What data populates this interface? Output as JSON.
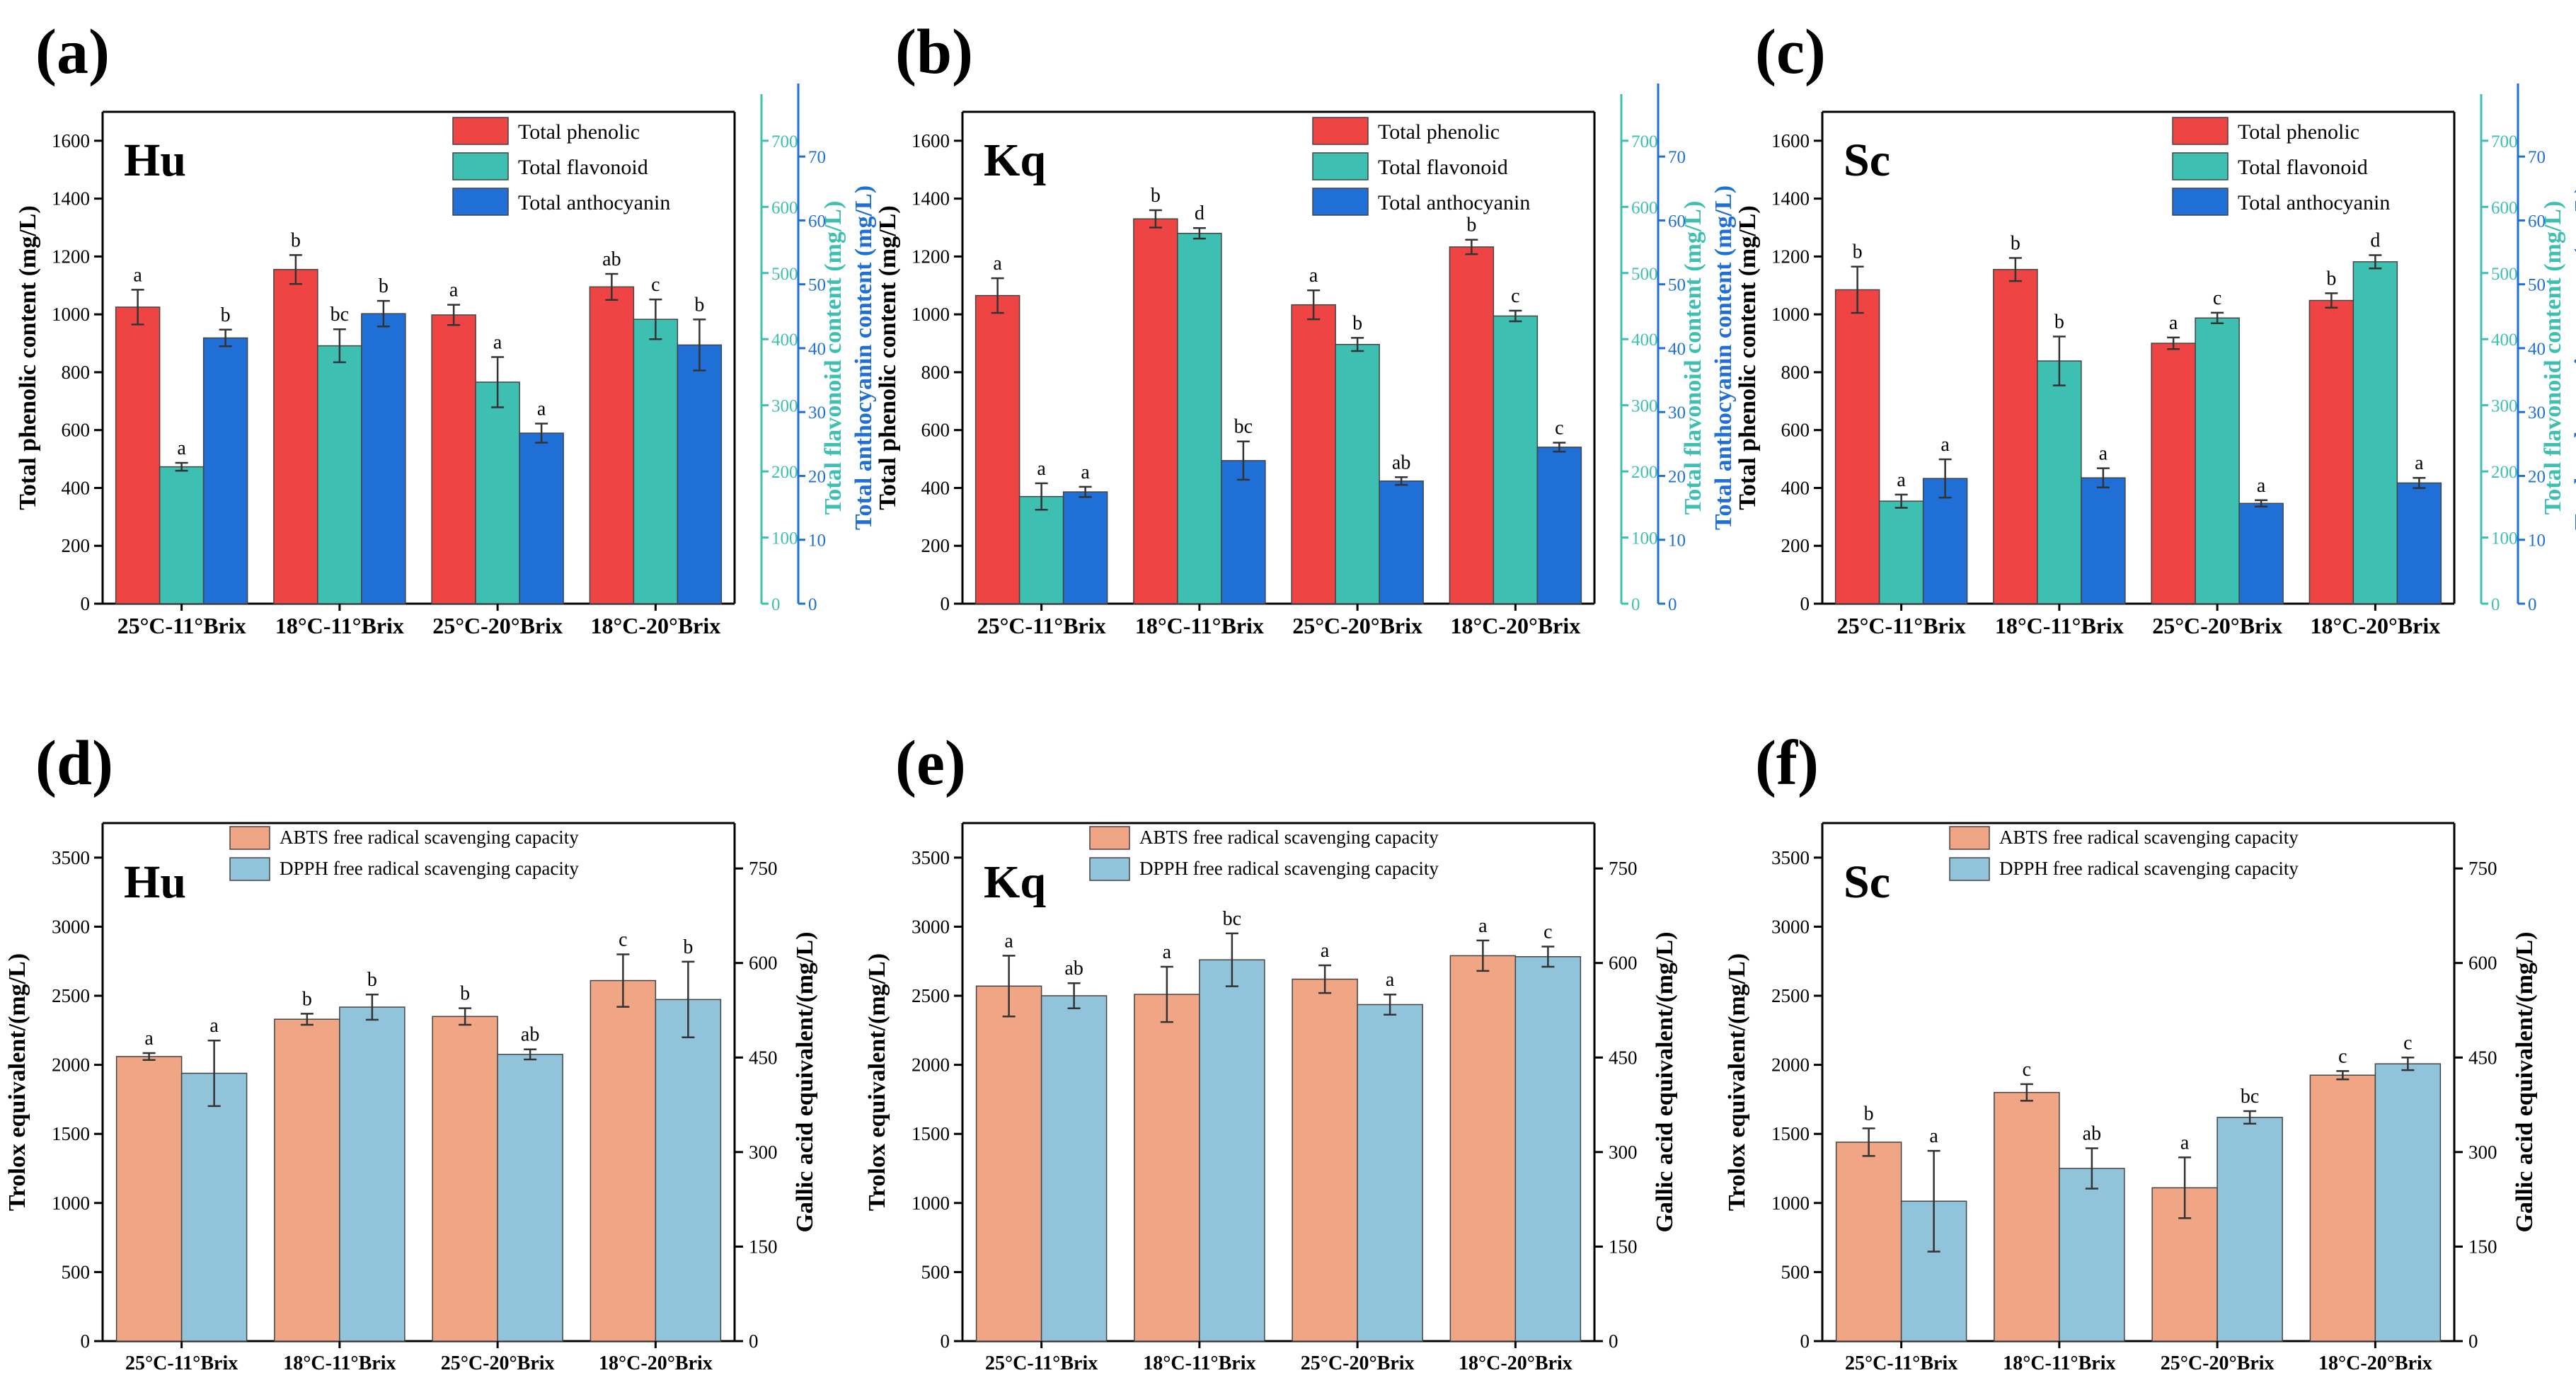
{
  "colors": {
    "phenolic": "#ef4444",
    "flavonoid": "#3dbfb2",
    "anthocyanin": "#1f6fd6",
    "abts": "#f0a585",
    "dpph": "#91c4da",
    "axis": "#000000"
  },
  "chart_data": [
    {
      "id": "a",
      "panel_label": "(a)",
      "title": "Hu",
      "type": "bar",
      "categories": [
        "25°C-11°Brix",
        "18°C-11°Brix",
        "25°C-20°Brix",
        "18°C-20°Brix"
      ],
      "ylabel": "Total phenolic  content (mg/L)",
      "ylim": [
        0,
        1700
      ],
      "yticks": [
        0,
        200,
        400,
        600,
        800,
        1000,
        1200,
        1400,
        1600
      ],
      "y2label": "Total flavonoid  content (mg/L)",
      "y2lim": [
        0,
        743.75
      ],
      "y2ticks": [
        0,
        100,
        200,
        300,
        400,
        500,
        600,
        700
      ],
      "y3label": "Total anthocyanin  content (mg/L)",
      "y3lim": [
        0,
        77
      ],
      "y3ticks": [
        0,
        10,
        20,
        30,
        40,
        50,
        60,
        70
      ],
      "series": [
        {
          "name": "Total phenolic",
          "axis": 1,
          "values": [
            1025,
            1155,
            998,
            1095
          ],
          "errors": [
            60,
            50,
            35,
            45
          ],
          "letters": [
            "a",
            "b",
            "a",
            "ab"
          ]
        },
        {
          "name": "Total flavonoid",
          "axis": 2,
          "values": [
            207,
            390,
            335,
            430
          ],
          "errors": [
            6,
            25,
            38,
            30
          ],
          "letters": [
            "a",
            "bc",
            "a",
            "c"
          ]
        },
        {
          "name": "Total anthocyanin",
          "axis": 3,
          "values": [
            41.6,
            45.4,
            26.7,
            40.5
          ],
          "errors": [
            1.3,
            2.0,
            1.5,
            4.0
          ],
          "letters": [
            "b",
            "b",
            "a",
            "b"
          ]
        }
      ]
    },
    {
      "id": "b",
      "panel_label": "(b)",
      "title": "Kq",
      "type": "bar",
      "categories": [
        "25°C-11°Brix",
        "18°C-11°Brix",
        "25°C-20°Brix",
        "18°C-20°Brix"
      ],
      "ylabel": "Total phenolic  content (mg/L)",
      "ylim": [
        0,
        1700
      ],
      "yticks": [
        0,
        200,
        400,
        600,
        800,
        1000,
        1200,
        1400,
        1600
      ],
      "y2label": "Total flavonoid  content (mg/L)",
      "y2lim": [
        0,
        743.75
      ],
      "y2ticks": [
        0,
        100,
        200,
        300,
        400,
        500,
        600,
        700
      ],
      "y3label": "Total anthocyanin  content (mg/L)",
      "y3lim": [
        0,
        77
      ],
      "y3ticks": [
        0,
        10,
        20,
        30,
        40,
        50,
        60,
        70
      ],
      "series": [
        {
          "name": "Total phenolic",
          "axis": 1,
          "values": [
            1065,
            1330,
            1033,
            1233
          ],
          "errors": [
            60,
            30,
            50,
            25
          ],
          "letters": [
            "a",
            "b",
            "a",
            "b"
          ]
        },
        {
          "name": "Total flavonoid",
          "axis": 2,
          "values": [
            162,
            560,
            392,
            435
          ],
          "errors": [
            20,
            8,
            10,
            8
          ],
          "letters": [
            "a",
            "d",
            "b",
            "c"
          ]
        },
        {
          "name": "Total anthocyanin",
          "axis": 3,
          "values": [
            17.5,
            22.4,
            19.2,
            24.5
          ],
          "errors": [
            0.8,
            3.0,
            0.6,
            0.7
          ],
          "letters": [
            "a",
            "bc",
            "ab",
            "c"
          ]
        }
      ]
    },
    {
      "id": "c",
      "panel_label": "(c)",
      "title": "Sc",
      "type": "bar",
      "categories": [
        "25°C-11°Brix",
        "18°C-11°Brix",
        "25°C-20°Brix",
        "18°C-20°Brix"
      ],
      "ylabel": "Total phenolic  content (mg/L)",
      "ylim": [
        0,
        1700
      ],
      "yticks": [
        0,
        200,
        400,
        600,
        800,
        1000,
        1200,
        1400,
        1600
      ],
      "y2label": "Total flavonoid  content (mg/L)",
      "y2lim": [
        0,
        743.75
      ],
      "y2ticks": [
        0,
        100,
        200,
        300,
        400,
        500,
        600,
        700
      ],
      "y3label": "Total anthocyanin  content (mg/L)",
      "y3lim": [
        0,
        77
      ],
      "y3ticks": [
        0,
        10,
        20,
        30,
        40,
        50,
        60,
        70
      ],
      "series": [
        {
          "name": "Total phenolic",
          "axis": 1,
          "values": [
            1085,
            1155,
            900,
            1048
          ],
          "errors": [
            80,
            40,
            20,
            25
          ],
          "letters": [
            "b",
            "b",
            "a",
            "b"
          ]
        },
        {
          "name": "Total flavonoid",
          "axis": 2,
          "values": [
            155,
            367,
            432,
            517
          ],
          "errors": [
            10,
            37,
            8,
            10
          ],
          "letters": [
            "a",
            "b",
            "c",
            "d"
          ]
        },
        {
          "name": "Total anthocyanin",
          "axis": 3,
          "values": [
            19.6,
            19.7,
            15.7,
            18.9
          ],
          "errors": [
            3.0,
            1.5,
            0.5,
            0.8
          ],
          "letters": [
            "a",
            "a",
            "a",
            "a"
          ]
        }
      ]
    },
    {
      "id": "d",
      "panel_label": "(d)",
      "title": "Hu",
      "type": "bar",
      "categories": [
        "25°C-11°Brix",
        "18°C-11°Brix",
        "25°C-20°Brix",
        "18°C-20°Brix"
      ],
      "ylabel": "Trolox equivalent/(mg/L)",
      "ylim": [
        0,
        3750
      ],
      "yticks": [
        0,
        500,
        1000,
        1500,
        2000,
        2500,
        3000,
        3500
      ],
      "y2label": "Gallic acid equivalent/(mg/L)",
      "y2lim": [
        0,
        822
      ],
      "y2ticks": [
        0,
        150,
        300,
        450,
        600,
        750
      ],
      "series": [
        {
          "name": "ABTS free radical scavenging capacity",
          "axis": 1,
          "values": [
            2060,
            2330,
            2350,
            2610
          ],
          "errors": [
            25,
            40,
            60,
            190
          ],
          "letters": [
            "a",
            "b",
            "b",
            "c"
          ]
        },
        {
          "name": "DPPH free radical scavenging capacity",
          "axis": 2,
          "values": [
            425,
            530,
            455,
            542
          ],
          "errors": [
            52,
            20,
            8,
            60
          ],
          "letters": [
            "a",
            "b",
            "ab",
            "b"
          ]
        }
      ]
    },
    {
      "id": "e",
      "panel_label": "(e)",
      "title": "Kq",
      "type": "bar",
      "categories": [
        "25°C-11°Brix",
        "18°C-11°Brix",
        "25°C-20°Brix",
        "18°C-20°Brix"
      ],
      "ylabel": "Trolox equivalent/(mg/L)",
      "ylim": [
        0,
        3750
      ],
      "yticks": [
        0,
        500,
        1000,
        1500,
        2000,
        2500,
        3000,
        3500
      ],
      "y2label": "Gallic acid equivalent/(mg/L)",
      "y2lim": [
        0,
        822
      ],
      "y2ticks": [
        0,
        150,
        300,
        450,
        600,
        750
      ],
      "series": [
        {
          "name": "ABTS free radical scavenging capacity",
          "axis": 1,
          "values": [
            2570,
            2510,
            2620,
            2790
          ],
          "errors": [
            220,
            200,
            100,
            110
          ],
          "letters": [
            "a",
            "a",
            "a",
            "a"
          ]
        },
        {
          "name": "DPPH free radical scavenging capacity",
          "axis": 2,
          "values": [
            548,
            605,
            534,
            610
          ],
          "errors": [
            20,
            42,
            16,
            16
          ],
          "letters": [
            "ab",
            "bc",
            "a",
            "c"
          ]
        }
      ]
    },
    {
      "id": "f",
      "panel_label": "(f)",
      "title": "Sc",
      "type": "bar",
      "categories": [
        "25°C-11°Brix",
        "18°C-11°Brix",
        "25°C-20°Brix",
        "18°C-20°Brix"
      ],
      "ylabel": "Trolox equivalent/(mg/L)",
      "ylim": [
        0,
        3750
      ],
      "yticks": [
        0,
        500,
        1000,
        1500,
        2000,
        2500,
        3000,
        3500
      ],
      "y2label": "Gallic acid equivalent/(mg/L)",
      "y2lim": [
        0,
        822
      ],
      "y2ticks": [
        0,
        150,
        300,
        450,
        600,
        750
      ],
      "series": [
        {
          "name": "ABTS free radical scavenging capacity",
          "axis": 1,
          "values": [
            1440,
            1800,
            1110,
            1925
          ],
          "errors": [
            100,
            60,
            220,
            30
          ],
          "letters": [
            "b",
            "c",
            "a",
            "c"
          ]
        },
        {
          "name": "DPPH free radical scavenging capacity",
          "axis": 2,
          "values": [
            222,
            274,
            355,
            440
          ],
          "errors": [
            80,
            32,
            10,
            10
          ],
          "letters": [
            "a",
            "ab",
            "bc",
            "c"
          ]
        }
      ]
    }
  ]
}
